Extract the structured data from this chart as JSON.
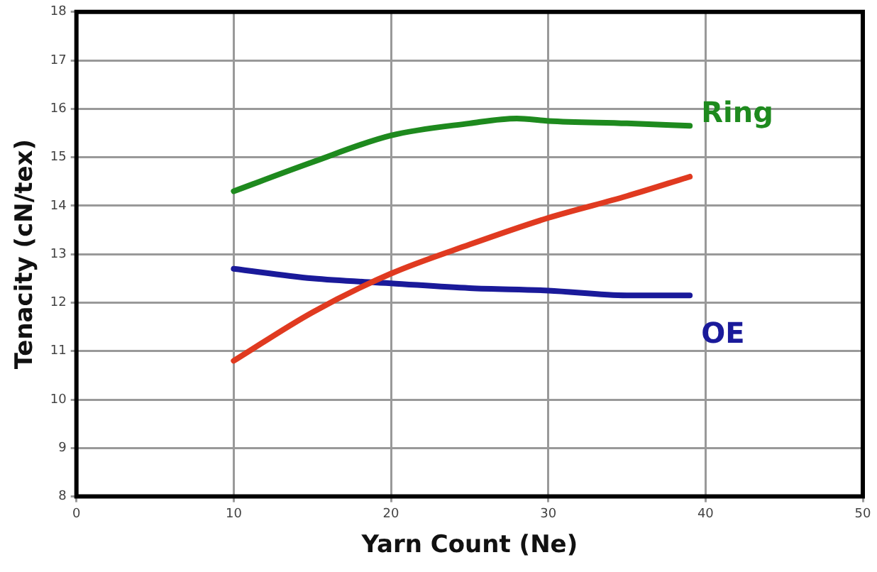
{
  "chart_data": {
    "type": "line",
    "xlabel": "Yarn Count (Ne)",
    "ylabel": "Tenacity (cN/tex)",
    "xlim": [
      0,
      50
    ],
    "xticks": [
      0,
      10,
      20,
      30,
      40,
      50
    ],
    "ylim": [
      8,
      18
    ],
    "yticks": [
      8,
      9,
      10,
      11,
      12,
      13,
      14,
      15,
      16,
      17,
      18
    ],
    "grid": true,
    "legend": false,
    "marker": "none",
    "series": [
      {
        "name": "Ring",
        "color": "#1e8a1e",
        "x": [
          10,
          15,
          20,
          25,
          28,
          30,
          35,
          39
        ],
        "values": [
          14.3,
          14.9,
          15.45,
          15.7,
          15.8,
          15.75,
          15.7,
          15.65
        ]
      },
      {
        "color": "#e03a20",
        "x": [
          10,
          15,
          20,
          25,
          30,
          35,
          39
        ],
        "values": [
          10.8,
          11.8,
          12.6,
          13.2,
          13.75,
          14.2,
          14.6
        ]
      },
      {
        "name": "OE",
        "color": "#1a1a9a",
        "x": [
          10,
          15,
          20,
          25,
          30,
          35,
          39
        ],
        "values": [
          12.7,
          12.5,
          12.4,
          12.3,
          12.25,
          12.15,
          12.15
        ]
      }
    ]
  }
}
